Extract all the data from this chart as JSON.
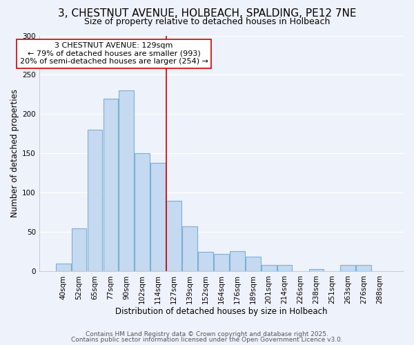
{
  "title": "3, CHESTNUT AVENUE, HOLBEACH, SPALDING, PE12 7NE",
  "subtitle": "Size of property relative to detached houses in Holbeach",
  "xlabel": "Distribution of detached houses by size in Holbeach",
  "ylabel": "Number of detached properties",
  "bar_labels": [
    "40sqm",
    "52sqm",
    "65sqm",
    "77sqm",
    "90sqm",
    "102sqm",
    "114sqm",
    "127sqm",
    "139sqm",
    "152sqm",
    "164sqm",
    "176sqm",
    "189sqm",
    "201sqm",
    "214sqm",
    "226sqm",
    "238sqm",
    "251sqm",
    "263sqm",
    "276sqm",
    "288sqm"
  ],
  "bar_values": [
    10,
    55,
    180,
    220,
    230,
    150,
    138,
    90,
    57,
    25,
    22,
    26,
    19,
    8,
    8,
    0,
    3,
    0,
    8,
    8,
    0
  ],
  "bar_color": "#c5d9f0",
  "bar_edge_color": "#7bafd4",
  "ylim": [
    0,
    300
  ],
  "yticks": [
    0,
    50,
    100,
    150,
    200,
    250,
    300
  ],
  "vline_index": 7,
  "vline_color": "#cc0000",
  "annotation_title": "3 CHESTNUT AVENUE: 129sqm",
  "annotation_line1": "← 79% of detached houses are smaller (993)",
  "annotation_line2": "20% of semi-detached houses are larger (254) →",
  "annotation_box_facecolor": "#ffffff",
  "annotation_box_edgecolor": "#cc0000",
  "footer1": "Contains HM Land Registry data © Crown copyright and database right 2025.",
  "footer2": "Contains public sector information licensed under the Open Government Licence v3.0.",
  "background_color": "#eef2fb",
  "grid_color": "#ffffff",
  "title_fontsize": 11,
  "subtitle_fontsize": 9,
  "axis_label_fontsize": 8.5,
  "tick_fontsize": 7.5,
  "annotation_fontsize": 8,
  "footer_fontsize": 6.5
}
